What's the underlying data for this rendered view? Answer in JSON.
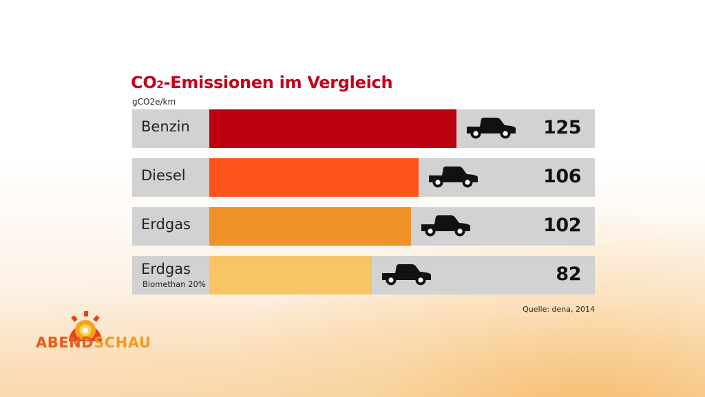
{
  "title": {
    "main_prefix": "CO",
    "subscript": "2",
    "main_suffix": "-Emissionen im Vergleich"
  },
  "unit": "gCO2e/km",
  "source": "Quelle: dena, 2014",
  "logo": {
    "part1": "ABEND",
    "part2": "SCHAU",
    "color1": "#e85a1c",
    "color2": "#f39a1e"
  },
  "chart_data": {
    "type": "bar",
    "orientation": "horizontal",
    "title": "CO2-Emissionen im Vergleich",
    "ylabel": "gCO2e/km",
    "categories": [
      "Benzin",
      "Diesel",
      "Erdgas",
      "Erdgas Biomethan 20%"
    ],
    "category_labels": [
      {
        "label": "Benzin",
        "sublabel": ""
      },
      {
        "label": "Diesel",
        "sublabel": ""
      },
      {
        "label": "Erdgas",
        "sublabel": ""
      },
      {
        "label": "Erdgas",
        "sublabel": "Biomethan 20%"
      }
    ],
    "values": [
      125,
      106,
      102,
      82
    ],
    "colors": [
      "#bb0010",
      "#fb5319",
      "#f0922a",
      "#f8c466"
    ],
    "track_color": "#d2d2d2",
    "icon": "car-icon",
    "grid": false,
    "legend": "none"
  }
}
